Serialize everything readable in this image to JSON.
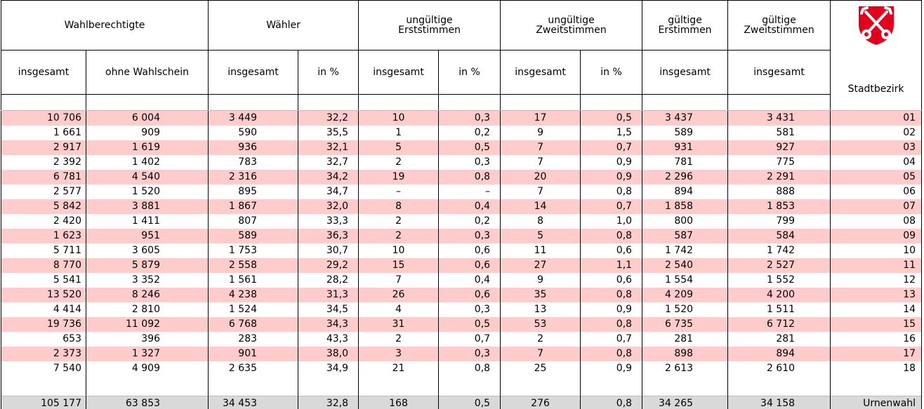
{
  "table": {
    "groups": [
      "Wahlberechtigte",
      "Wähler",
      "ungültige\nErststimmen",
      "ungültige\nZweitstimmen",
      "gültige\nErstimmen",
      "gültige\nZweitstimmen"
    ],
    "subheaders": [
      "insgesamt",
      "ohne Wahlschein",
      "insgesamt",
      "in %",
      "insgesamt",
      "in %",
      "insgesamt",
      "in %",
      "insgesamt",
      "insgesamt",
      "Stadtbezirk"
    ],
    "rows": [
      [
        "10 706",
        "6 004",
        "3 449",
        "32,2",
        "10",
        "0,3",
        "17",
        "0,5",
        "3 437",
        "3 431",
        "01"
      ],
      [
        "1 661",
        "909",
        "590",
        "35,5",
        "1",
        "0,2",
        "9",
        "1,5",
        "589",
        "581",
        "02"
      ],
      [
        "2 917",
        "1 619",
        "936",
        "32,1",
        "5",
        "0,5",
        "7",
        "0,7",
        "931",
        "927",
        "03"
      ],
      [
        "2 392",
        "1 402",
        "783",
        "32,7",
        "2",
        "0,3",
        "7",
        "0,9",
        "781",
        "775",
        "04"
      ],
      [
        "6 781",
        "4 540",
        "2 316",
        "34,2",
        "19",
        "0,8",
        "20",
        "0,9",
        "2 296",
        "2 291",
        "05"
      ],
      [
        "2 577",
        "1 520",
        "895",
        "34,7",
        "–",
        "–",
        "7",
        "0,8",
        "894",
        "888",
        "06"
      ],
      [
        "5 842",
        "3 881",
        "1 867",
        "32,0",
        "8",
        "0,4",
        "14",
        "0,7",
        "1 858",
        "1 853",
        "07"
      ],
      [
        "2 420",
        "1 411",
        "807",
        "33,3",
        "2",
        "0,2",
        "8",
        "1,0",
        "800",
        "799",
        "08"
      ],
      [
        "1 623",
        "951",
        "589",
        "36,3",
        "2",
        "0,3",
        "5",
        "0,8",
        "587",
        "584",
        "09"
      ],
      [
        "5 711",
        "3 605",
        "1 753",
        "30,7",
        "10",
        "0,6",
        "11",
        "0,6",
        "1 742",
        "1 742",
        "10"
      ],
      [
        "8 770",
        "5 879",
        "2 558",
        "29,2",
        "15",
        "0,6",
        "27",
        "1,1",
        "2 540",
        "2 527",
        "11"
      ],
      [
        "5 541",
        "3 352",
        "1 561",
        "28,2",
        "7",
        "0,4",
        "9",
        "0,6",
        "1 554",
        "1 552",
        "12"
      ],
      [
        "13 520",
        "8 246",
        "4 238",
        "31,3",
        "26",
        "0,6",
        "35",
        "0,8",
        "4 209",
        "4 200",
        "13"
      ],
      [
        "4 414",
        "2 810",
        "1 524",
        "34,5",
        "4",
        "0,3",
        "13",
        "0,9",
        "1 520",
        "1 511",
        "14"
      ],
      [
        "19 736",
        "11 092",
        "6 768",
        "34,3",
        "31",
        "0,5",
        "53",
        "0,8",
        "6 735",
        "6 712",
        "15"
      ],
      [
        "653",
        "396",
        "283",
        "43,3",
        "2",
        "0,7",
        "2",
        "0,7",
        "281",
        "281",
        "16"
      ],
      [
        "2 373",
        "1 327",
        "901",
        "38,0",
        "3",
        "0,3",
        "7",
        "0,8",
        "898",
        "894",
        "17"
      ],
      [
        "7 540",
        "4 909",
        "2 635",
        "34,9",
        "21",
        "0,8",
        "25",
        "0,9",
        "2 613",
        "2 610",
        "18"
      ]
    ],
    "total": [
      "105 177",
      "63 853",
      "34 453",
      "32,8",
      "168",
      "0,5",
      "276",
      "0,8",
      "34 265",
      "34 158",
      "Urnenwahl"
    ]
  }
}
